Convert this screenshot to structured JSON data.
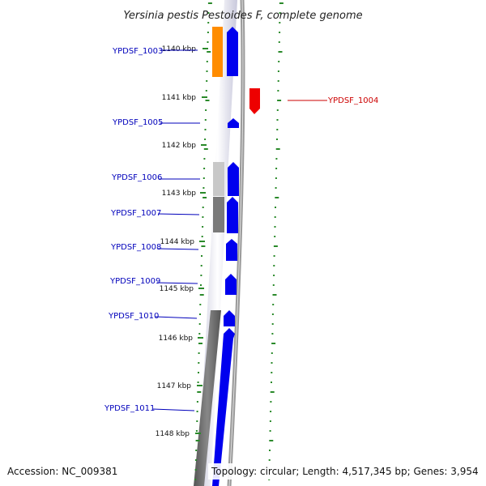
{
  "title": "Yersinia pestis Pestoides F, complete genome",
  "accession": "Accession: NC_009381",
  "summary": "Topology: circular; Length: 4,517,345 bp; Genes: 3,954",
  "colors": {
    "forward_gene": "#0000ee",
    "reverse_gene": "#ee0000",
    "gene_label_forward": "#0000bb",
    "gene_label_reverse": "#cc0000",
    "ticks": "#2a8a2a",
    "orange_feature": "#ff8c00"
  },
  "scale": {
    "unit": "kbp",
    "labels": [
      "1140 kbp",
      "1141 kbp",
      "1142 kbp",
      "1143 kbp",
      "1144 kbp",
      "1145 kbp",
      "1146 kbp",
      "1147 kbp",
      "1148 kbp"
    ]
  },
  "genes": [
    {
      "label": "YPDSF_1003",
      "strand": "+"
    },
    {
      "label": "YPDSF_1004",
      "strand": "-"
    },
    {
      "label": "YPDSF_1005",
      "strand": "+"
    },
    {
      "label": "YPDSF_1006",
      "strand": "+"
    },
    {
      "label": "YPDSF_1007",
      "strand": "+"
    },
    {
      "label": "YPDSF_1008",
      "strand": "+"
    },
    {
      "label": "YPDSF_1009",
      "strand": "+"
    },
    {
      "label": "YPDSF_1010",
      "strand": "+"
    },
    {
      "label": "YPDSF_1011",
      "strand": "+"
    }
  ]
}
